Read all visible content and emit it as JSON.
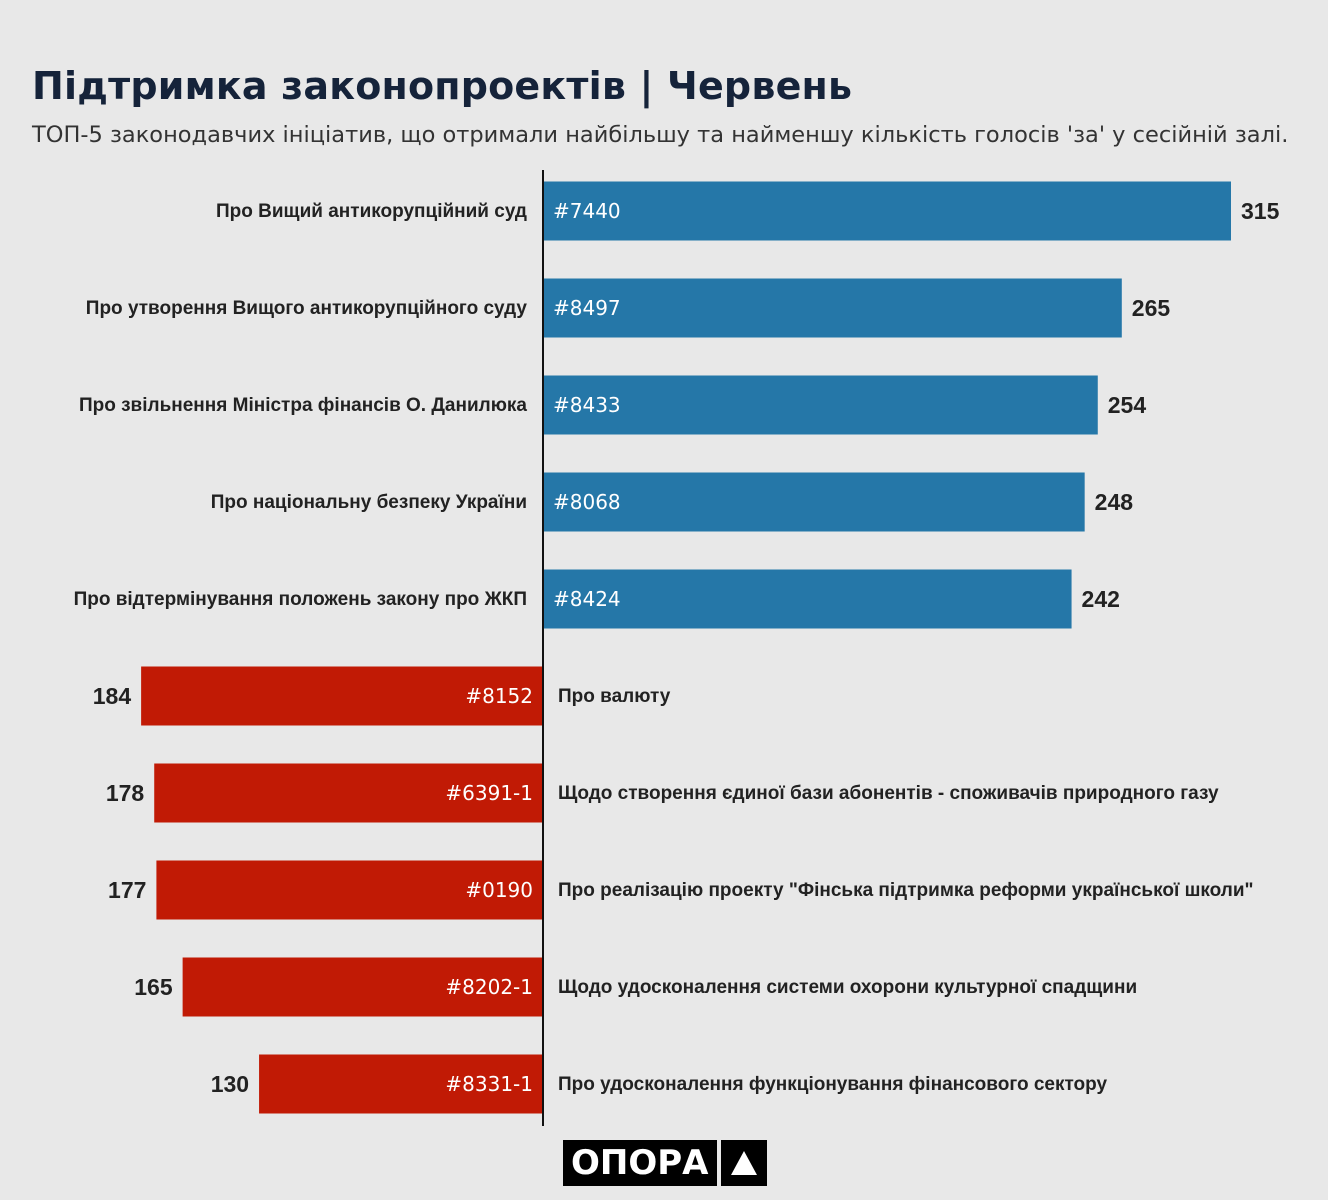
{
  "title": "Підтримка законопроектів | Червень",
  "subtitle": "ТОП-5 законодавчих ініціатив, що отримали найбільшу та найменшу кількість голосів 'за' у сесійній залі.",
  "logo": {
    "text": "ОПОРА"
  },
  "colors": {
    "top": "#2577a8",
    "bottom": "#c11a05",
    "background": "#e8e8e8",
    "axis": "#111111"
  },
  "chart_data": {
    "type": "bar",
    "orientation": "horizontal-diverging",
    "title": "Підтримка законопроектів | Червень",
    "subtitle": "ТОП-5 законодавчих ініціатив, що отримали найбільшу та найменшу кількість голосів 'за' у сесійній залі.",
    "xlim": [
      0,
      315
    ],
    "top": [
      {
        "label": "Про Вищий антикорупційний суд",
        "id": "#7440",
        "value": 315
      },
      {
        "label": "Про утворення Вищого антикорупційного суду",
        "id": "#8497",
        "value": 265
      },
      {
        "label": "Про звільнення Міністра фінансів О. Данилюка",
        "id": "#8433",
        "value": 254
      },
      {
        "label": "Про національну безпеку України",
        "id": "#8068",
        "value": 248
      },
      {
        "label": "Про відтермінування положень закону про ЖКП",
        "id": "#8424",
        "value": 242
      }
    ],
    "bottom": [
      {
        "label": "Про валюту",
        "id": "#8152",
        "value": 184
      },
      {
        "label": "Щодо створення єдиної бази абонентів - споживачів природного газу",
        "id": "#6391-1",
        "value": 178
      },
      {
        "label": "Про реалізацію проекту \"Фінська підтримка реформи української школи\"",
        "id": "#0190",
        "value": 177
      },
      {
        "label": "Щодо удосконалення системи охорони культурної спадщини",
        "id": "#8202-1",
        "value": 165
      },
      {
        "label": "Про удосконалення функціонування фінансового сектору",
        "id": "#8331-1",
        "value": 130
      }
    ]
  }
}
